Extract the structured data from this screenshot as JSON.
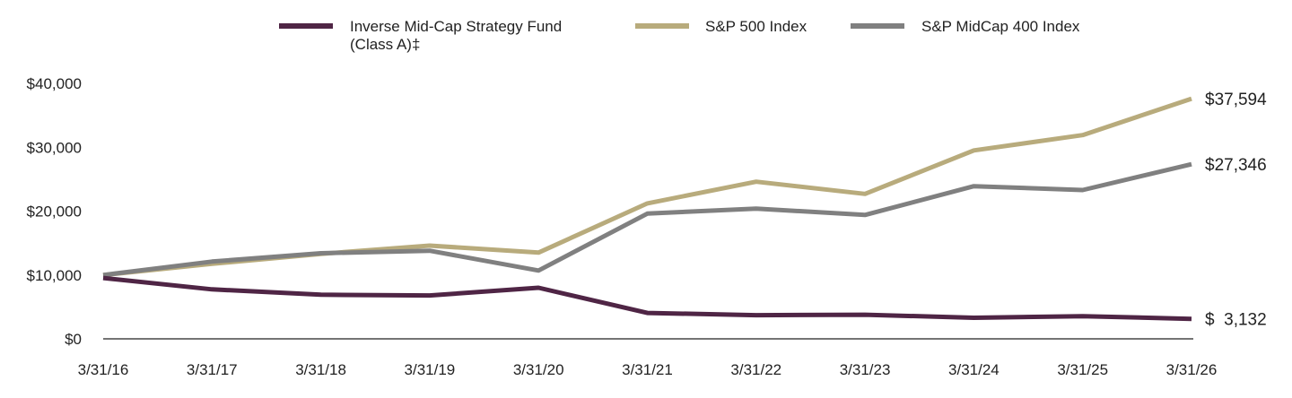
{
  "chart_data": {
    "type": "line",
    "title": "",
    "xlabel": "",
    "ylabel": "",
    "categories": [
      "3/31/16",
      "3/31/17",
      "3/31/18",
      "3/31/19",
      "3/31/20",
      "3/31/21",
      "3/31/22",
      "3/31/23",
      "3/31/24",
      "3/31/25",
      "3/31/26"
    ],
    "y_ticks": [
      "$0",
      "$10,000",
      "$20,000",
      "$30,000",
      "$40,000"
    ],
    "ylim": [
      0,
      40000
    ],
    "grid": false,
    "legend_position": "top",
    "series": [
      {
        "name": "Inverse Mid-Cap Strategy Fund (Class A)‡",
        "legend_lines": [
          "Inverse Mid-Cap Strategy Fund",
          "(Class A)‡"
        ],
        "color": "#4f2545",
        "end_label": "$  3,132",
        "values": [
          9525,
          7750,
          6900,
          6800,
          8000,
          4050,
          3700,
          3780,
          3300,
          3550,
          3132
        ]
      },
      {
        "name": "S&P 500 Index",
        "legend_lines": [
          "S&P 500 Index"
        ],
        "color": "#b8ab7c",
        "end_label": "$37,594",
        "values": [
          10000,
          11750,
          13300,
          14600,
          13500,
          21200,
          24600,
          22700,
          29500,
          31900,
          37594
        ]
      },
      {
        "name": "S&P MidCap 400 Index",
        "legend_lines": [
          "S&P MidCap 400 Index"
        ],
        "color": "#808080",
        "end_label": "$27,346",
        "values": [
          10000,
          12100,
          13400,
          13800,
          10700,
          19600,
          20400,
          19400,
          23900,
          23300,
          27346
        ]
      }
    ]
  }
}
